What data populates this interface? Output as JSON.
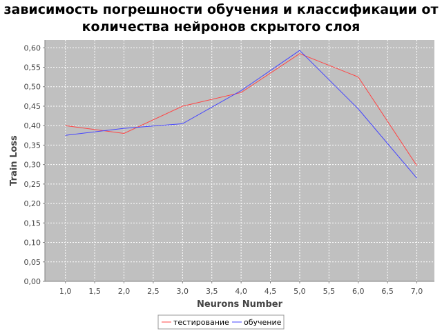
{
  "chart_data": {
    "type": "line",
    "title_line1": "зависимость погрешности обучения и классификации от",
    "title_line2": "количества нейронов скрытого слоя",
    "xlabel": "Neurons Number",
    "ylabel": "Train Loss",
    "xlim": [
      0.65,
      7.3
    ],
    "ylim": [
      0.0,
      0.62
    ],
    "x_ticks": [
      "1,0",
      "1,5",
      "2,0",
      "2,5",
      "3,0",
      "3,5",
      "4,0",
      "4,5",
      "5,0",
      "5,5",
      "6,0",
      "6,5",
      "7,0"
    ],
    "y_ticks": [
      "0,00",
      "0,05",
      "0,10",
      "0,15",
      "0,20",
      "0,25",
      "0,30",
      "0,35",
      "0,40",
      "0,45",
      "0,50",
      "0,55",
      "0,60"
    ],
    "x": [
      1,
      2,
      3,
      4,
      5,
      6,
      7
    ],
    "series": [
      {
        "name": "тестирование",
        "color": "#ff4444",
        "values": [
          0.4,
          0.38,
          0.45,
          0.485,
          0.585,
          0.525,
          0.297
        ]
      },
      {
        "name": "обучение",
        "color": "#4444ff",
        "values": [
          0.375,
          0.393,
          0.405,
          0.49,
          0.593,
          0.443,
          0.265
        ]
      }
    ],
    "grid": true,
    "plot_background": "#c0c0c0",
    "legend_position": "bottom-center"
  }
}
